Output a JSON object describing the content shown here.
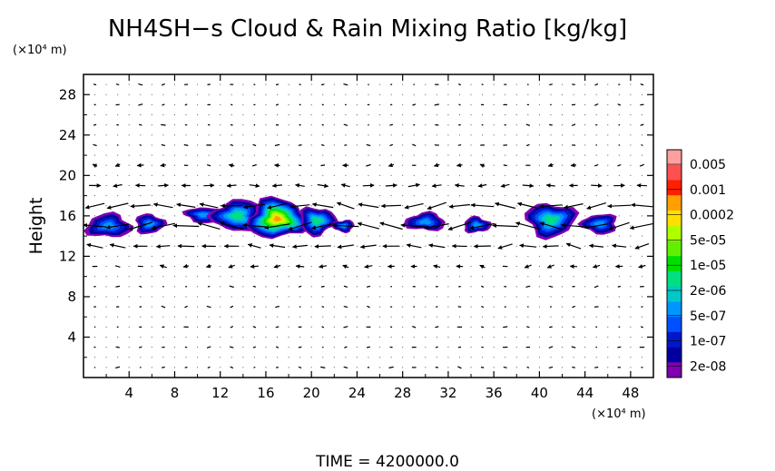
{
  "chart_data": {
    "type": "heatmap",
    "title": "NH4SH−s Cloud & Rain Mixing Ratio [kg/kg]",
    "ylabel": "Height",
    "y_unit": "(×10⁴ m)",
    "x_unit": "(×10⁴ m)",
    "footer": "TIME  =  4200000.0",
    "xlim": [
      0,
      50
    ],
    "ylim": [
      0,
      30
    ],
    "x_ticks": [
      4,
      8,
      12,
      16,
      20,
      24,
      28,
      32,
      36,
      40,
      44,
      48
    ],
    "y_ticks": [
      4,
      8,
      12,
      16,
      20,
      24,
      28
    ],
    "grid": "dotted",
    "colorbar": {
      "labels": [
        "0.005",
        "0.001",
        "0.0002",
        "5e-05",
        "1e-05",
        "2e-06",
        "5e-07",
        "1e-07",
        "2e-08"
      ],
      "colors": [
        "#ffa0a0",
        "#ff5050",
        "#ff2000",
        "#ffa000",
        "#ffe000",
        "#b0ff00",
        "#60f000",
        "#00e000",
        "#00e080",
        "#00c8c8",
        "#0096ff",
        "#0050ff",
        "#0018c8",
        "#0000a0",
        "#8000b0"
      ]
    },
    "cloud_blobs": [
      {
        "x": 2.2,
        "y": 15.0,
        "w": 2.0,
        "h": 1.2,
        "peak": "5e-07"
      },
      {
        "x": 5.8,
        "y": 15.2,
        "w": 1.3,
        "h": 1.0,
        "peak": "5e-07"
      },
      {
        "x": 10.5,
        "y": 16.1,
        "w": 1.6,
        "h": 0.8,
        "peak": "5e-07"
      },
      {
        "x": 13.5,
        "y": 16.0,
        "w": 2.2,
        "h": 1.6,
        "peak": "2e-06"
      },
      {
        "x": 17.0,
        "y": 15.7,
        "w": 2.6,
        "h": 2.0,
        "peak": "0.0002"
      },
      {
        "x": 20.5,
        "y": 15.5,
        "w": 1.6,
        "h": 1.4,
        "peak": "2e-06"
      },
      {
        "x": 22.8,
        "y": 15.0,
        "w": 1.0,
        "h": 0.6,
        "peak": "5e-07"
      },
      {
        "x": 30.0,
        "y": 15.4,
        "w": 1.8,
        "h": 0.9,
        "peak": "5e-07"
      },
      {
        "x": 34.5,
        "y": 15.1,
        "w": 1.2,
        "h": 0.8,
        "peak": "5e-07"
      },
      {
        "x": 41.0,
        "y": 15.6,
        "w": 2.2,
        "h": 1.7,
        "peak": "2e-06"
      },
      {
        "x": 45.3,
        "y": 15.2,
        "w": 1.6,
        "h": 1.0,
        "peak": "5e-07"
      }
    ]
  }
}
